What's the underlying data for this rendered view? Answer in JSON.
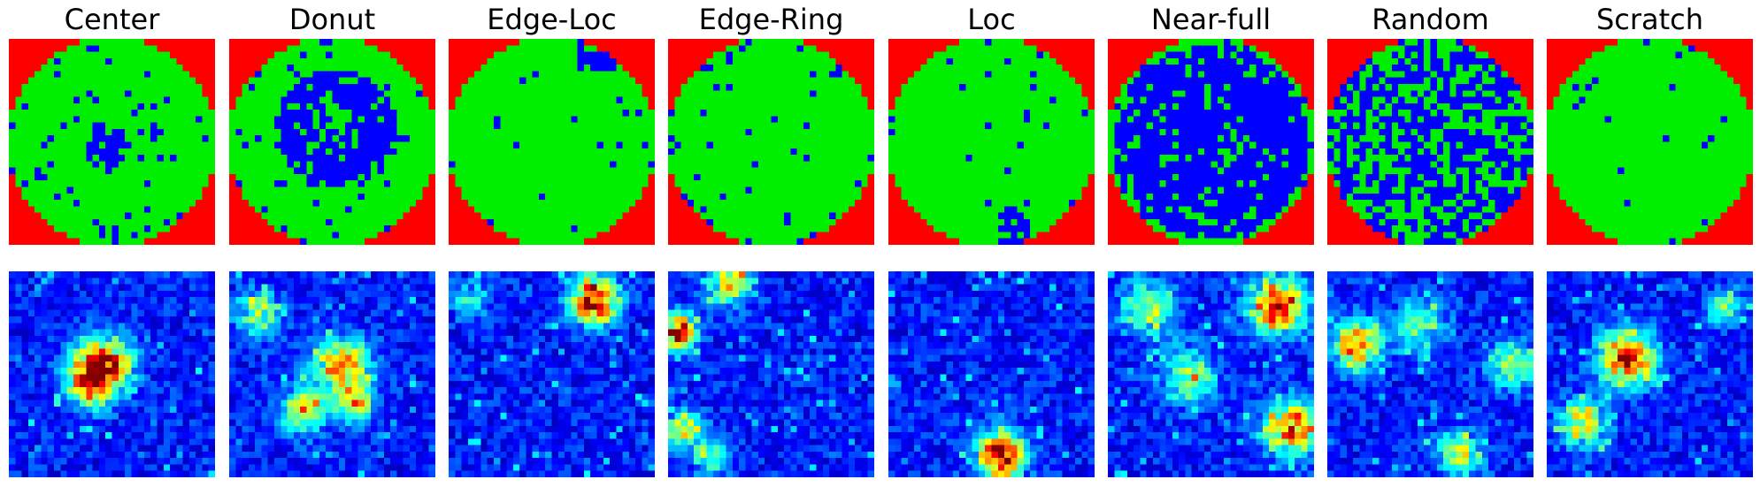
{
  "figure": {
    "columns": [
      {
        "label": "Center",
        "pattern": "center"
      },
      {
        "label": "Donut",
        "pattern": "donut"
      },
      {
        "label": "Edge-Loc",
        "pattern": "edge-loc"
      },
      {
        "label": "Edge-Ring",
        "pattern": "edge-ring"
      },
      {
        "label": "Loc",
        "pattern": "loc"
      },
      {
        "label": "Near-full",
        "pattern": "near-full"
      },
      {
        "label": "Random",
        "pattern": "random"
      },
      {
        "label": "Scratch",
        "pattern": "scratch"
      }
    ],
    "rows": [
      {
        "kind": "wafer-map"
      },
      {
        "kind": "activation-heatmap"
      }
    ],
    "wafer_colors": {
      "background": "#ff0000",
      "normal_die": "#00ee00",
      "defect_die": "#0000ff"
    },
    "heatmap_colormap": "jet"
  }
}
